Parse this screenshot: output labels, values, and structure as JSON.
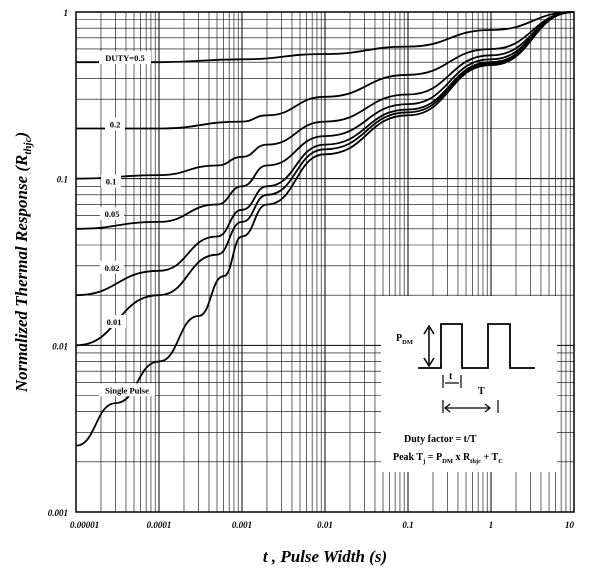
{
  "chart_data": {
    "type": "line",
    "title": "",
    "xlabel": "t , Pulse Width (s)",
    "ylabel": "Normalized Thermal Response (R",
    "ylabel_sub": "thjc",
    "ylabel_end": ")",
    "x_scale": "log",
    "y_scale": "log",
    "xlim": [
      1e-05,
      10
    ],
    "ylim": [
      0.001,
      1
    ],
    "grid": true,
    "x_ticks": [
      1e-05,
      0.0001,
      0.001,
      0.01,
      0.1,
      1,
      10
    ],
    "x_tick_labels": [
      "0.00001",
      "0.0001",
      "0.001",
      "0.01",
      "0.1",
      "1",
      "10"
    ],
    "y_ticks": [
      0.001,
      0.01,
      0.1,
      1
    ],
    "y_tick_labels": [
      "0.001",
      "0.01",
      "0.1",
      "1"
    ],
    "series": [
      {
        "name": "DUTY=0.5",
        "x": [
          1e-05,
          0.0001,
          0.001,
          0.01,
          0.1,
          1,
          10
        ],
        "y": [
          0.5,
          0.5,
          0.52,
          0.56,
          0.62,
          0.78,
          1.0
        ]
      },
      {
        "name": "0.2",
        "x": [
          1e-05,
          0.0001,
          0.001,
          0.002,
          0.01,
          0.1,
          1,
          10
        ],
        "y": [
          0.2,
          0.2,
          0.22,
          0.24,
          0.31,
          0.42,
          0.6,
          1.0
        ]
      },
      {
        "name": "0.1",
        "x": [
          1e-05,
          0.0001,
          0.0005,
          0.001,
          0.002,
          0.01,
          0.1,
          1,
          10
        ],
        "y": [
          0.1,
          0.105,
          0.12,
          0.135,
          0.16,
          0.22,
          0.32,
          0.55,
          1.0
        ]
      },
      {
        "name": "0.05",
        "x": [
          1e-05,
          0.0001,
          0.0005,
          0.001,
          0.002,
          0.01,
          0.1,
          1,
          10
        ],
        "y": [
          0.05,
          0.055,
          0.07,
          0.09,
          0.12,
          0.18,
          0.28,
          0.52,
          1.0
        ]
      },
      {
        "name": "0.02",
        "x": [
          1e-05,
          0.0001,
          0.0005,
          0.001,
          0.002,
          0.01,
          0.1,
          1,
          10
        ],
        "y": [
          0.02,
          0.028,
          0.045,
          0.065,
          0.09,
          0.16,
          0.26,
          0.5,
          1.0
        ]
      },
      {
        "name": "0.01",
        "x": [
          1e-05,
          0.0001,
          0.0005,
          0.001,
          0.002,
          0.01,
          0.1,
          1,
          10
        ],
        "y": [
          0.01,
          0.02,
          0.035,
          0.055,
          0.08,
          0.15,
          0.25,
          0.49,
          1.0
        ]
      },
      {
        "name": "Single Pulse",
        "x": [
          1e-05,
          3e-05,
          0.0001,
          0.0003,
          0.0006,
          0.001,
          0.002,
          0.01,
          0.1,
          1,
          10
        ],
        "y": [
          0.0025,
          0.0045,
          0.008,
          0.015,
          0.026,
          0.045,
          0.07,
          0.14,
          0.24,
          0.48,
          1.0
        ]
      }
    ],
    "curve_labels": {
      "DUTY=0.5": "DUTY=0.5",
      "0.2": "0.2",
      "0.1": "0.1",
      "0.05": "0.05",
      "0.02": "0.02",
      "0.01": "0.01",
      "Single Pulse": "Single Pulse"
    },
    "inset": {
      "pdm_label": "P",
      "pdm_sub": "DM",
      "t_label": "t",
      "T_label": "T",
      "duty_text": "Duty factor = t/T",
      "peak_text": "Peak T",
      "peak_sub_j": "j",
      "peak_mid": " = P",
      "peak_sub_dm": "DM",
      "peak_x": " x R",
      "peak_sub_thjc": "thjc",
      "peak_plus": " + T",
      "peak_sub_c": "C"
    }
  }
}
